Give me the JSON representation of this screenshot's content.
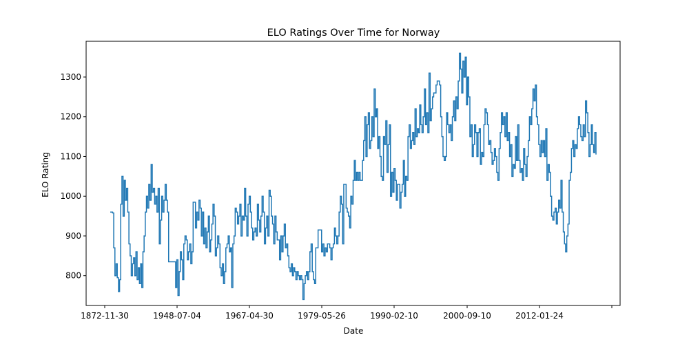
{
  "chart_data": {
    "type": "line",
    "title": "ELO Ratings Over Time for Norway",
    "xlabel": "Date",
    "ylabel": "ELO Rating",
    "x_tick_labels": [
      "1872-11-30",
      "1948-07-04",
      "1967-04-30",
      "1979-05-26",
      "1990-02-10",
      "2000-09-10",
      "2012-01-24",
      ""
    ],
    "y_tick_labels": [
      "800",
      "900",
      "1000",
      "1100",
      "1200",
      "1300"
    ],
    "yticks": [
      800,
      900,
      1000,
      1100,
      1200,
      1300
    ],
    "ylim": [
      725,
      1390
    ],
    "grid": false,
    "color": "#1f77b4",
    "series": [
      {
        "values": [
          960,
          960,
          958,
          870,
          800,
          830,
          795,
          760,
          790,
          980,
          1050,
          950,
          1040,
          990,
          1020,
          960,
          880,
          850,
          800,
          830,
          845,
          800,
          860,
          790,
          820,
          780,
          830,
          770,
          860,
          900,
          960,
          1000,
          970,
          1030,
          990,
          1080,
          1010,
          1020,
          980,
          1000,
          960,
          1020,
          880,
          940,
          1000,
          960,
          990,
          1030,
          990,
          960,
          835,
          835,
          835,
          835,
          835,
          835,
          770,
          840,
          750,
          810,
          860,
          840,
          790,
          880,
          900,
          890,
          840,
          860,
          880,
          830,
          860,
          985,
          985,
          920,
          960,
          940,
          990,
          970,
          900,
          960,
          880,
          920,
          870,
          910,
          950,
          860,
          890,
          930,
          980,
          950,
          850,
          870,
          900,
          880,
          820,
          800,
          830,
          780,
          810,
          870,
          880,
          900,
          860,
          870,
          770,
          880,
          900,
          970,
          960,
          930,
          950,
          980,
          900,
          950,
          940,
          1020,
          950,
          900,
          980,
          1000,
          960,
          920,
          890,
          910,
          920,
          900,
          980,
          940,
          910,
          950,
          1000,
          960,
          880,
          920,
          950,
          900,
          1015,
          1000,
          950,
          930,
          880,
          950,
          910,
          890,
          890,
          840,
          900,
          860,
          900,
          930,
          870,
          880,
          850,
          820,
          810,
          830,
          800,
          820,
          810,
          790,
          810,
          800,
          790,
          800,
          790,
          740,
          780,
          800,
          810,
          790,
          810,
          860,
          880,
          810,
          790,
          780,
          870,
          870,
          915,
          915,
          915,
          860,
          880,
          850,
          870,
          860,
          880,
          880,
          870,
          840,
          870,
          880,
          920,
          900,
          880,
          900,
          960,
          1000,
          980,
          880,
          1030,
          1030,
          970,
          960,
          950,
          920,
          1000,
          980,
          1040,
          1090,
          1040,
          1060,
          1040,
          1060,
          1040,
          1040,
          1090,
          1140,
          1200,
          1100,
          1180,
          1210,
          1120,
          1140,
          1200,
          1150,
          1270,
          1200,
          1220,
          1120,
          1150,
          1100,
          1050,
          1040,
          1150,
          1130,
          1190,
          1060,
          1130,
          1180,
          1000,
          1060,
          1010,
          1070,
          1040,
          990,
          1030,
          1030,
          970,
          1010,
          1030,
          1090,
          1000,
          1050,
          1040,
          1150,
          1180,
          1120,
          1140,
          1160,
          1130,
          1220,
          1150,
          1170,
          1160,
          1230,
          1180,
          1160,
          1200,
          1270,
          1180,
          1210,
          1160,
          1310,
          1190,
          1220,
          1250,
          1260,
          1260,
          1280,
          1290,
          1290,
          1280,
          1200,
          1150,
          1100,
          1090,
          1100,
          1210,
          1180,
          1160,
          1180,
          1140,
          1200,
          1240,
          1190,
          1250,
          1220,
          1290,
          1360,
          1320,
          1260,
          1340,
          1300,
          1350,
          1230,
          1300,
          1250,
          1150,
          1180,
          1100,
          1130,
          1180,
          1160,
          1100,
          1160,
          1170,
          1080,
          1110,
          1100,
          1180,
          1220,
          1210,
          1180,
          1130,
          1140,
          1110,
          1080,
          1090,
          1120,
          1100,
          1060,
          1040,
          1120,
          1160,
          1210,
          1180,
          1200,
          1150,
          1210,
          1140,
          1160,
          1100,
          1130,
          1050,
          1080,
          1070,
          1150,
          1090,
          1180,
          1090,
          1060,
          1070,
          1040,
          1120,
          1080,
          1050,
          1100,
          1140,
          1200,
          1180,
          1220,
          1270,
          1240,
          1280,
          1200,
          1180,
          1130,
          1100,
          1140,
          1110,
          1140,
          1100,
          1170,
          1040,
          1080,
          1060,
          1000,
          950,
          940,
          960,
          970,
          930,
          960,
          990,
          970,
          1040,
          960,
          910,
          880,
          860,
          900,
          930,
          1040,
          1060,
          1120,
          1140,
          1100,
          1130,
          1120,
          1170,
          1200,
          1180,
          1150,
          1140,
          1180,
          1150,
          1240,
          1210,
          1160,
          1100,
          1130,
          1180,
          1130,
          1110,
          1160,
          1105
        ]
      }
    ]
  }
}
